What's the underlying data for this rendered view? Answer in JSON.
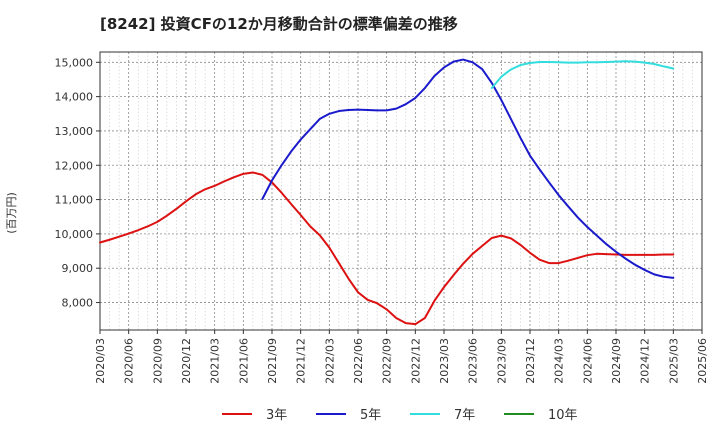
{
  "title": "[8242]  投資CFの12か月移動合計の標準偏差の推移",
  "chart_data": {
    "type": "line",
    "title": "[8242]  投資CFの12か月移動合計の標準偏差の推移",
    "xlabel": "",
    "ylabel": "(百万円)",
    "ylim": [
      7200,
      15300
    ],
    "yticks": [
      8000,
      9000,
      10000,
      11000,
      12000,
      13000,
      14000,
      15000
    ],
    "ytick_labels": [
      "8,000",
      "9,000",
      "10,000",
      "11,000",
      "12,000",
      "13,000",
      "14,000",
      "15,000"
    ],
    "xlim": [
      "2020-03",
      "2025-06"
    ],
    "xticks": [
      "2020/03",
      "2020/06",
      "2020/09",
      "2020/12",
      "2021/03",
      "2021/06",
      "2021/09",
      "2021/12",
      "2022/03",
      "2022/06",
      "2022/09",
      "2022/12",
      "2023/03",
      "2023/06",
      "2023/09",
      "2023/12",
      "2024/03",
      "2024/06",
      "2024/09",
      "2024/12",
      "2025/03",
      "2025/06"
    ],
    "grid": true,
    "legend_position": "bottom",
    "series": [
      {
        "name": "3年",
        "color": "#dd1111",
        "x": [
          "2020-03",
          "2020-04",
          "2020-05",
          "2020-06",
          "2020-07",
          "2020-08",
          "2020-09",
          "2020-10",
          "2020-11",
          "2020-12",
          "2021-01",
          "2021-02",
          "2021-03",
          "2021-04",
          "2021-05",
          "2021-06",
          "2021-07",
          "2021-08",
          "2021-09",
          "2021-10",
          "2021-11",
          "2021-12",
          "2022-01",
          "2022-02",
          "2022-03",
          "2022-04",
          "2022-05",
          "2022-06",
          "2022-07",
          "2022-08",
          "2022-09",
          "2022-10",
          "2022-11",
          "2022-12",
          "2023-01",
          "2023-02",
          "2023-03",
          "2023-04",
          "2023-05",
          "2023-06",
          "2023-07",
          "2023-08",
          "2023-09",
          "2023-10",
          "2023-11",
          "2023-12",
          "2024-01",
          "2024-02",
          "2024-03",
          "2024-04",
          "2024-05",
          "2024-06",
          "2024-07",
          "2024-08",
          "2024-09",
          "2024-10",
          "2024-11",
          "2024-12",
          "2025-01",
          "2025-02",
          "2025-03"
        ],
        "values": [
          9750,
          9830,
          9920,
          10010,
          10110,
          10220,
          10350,
          10530,
          10730,
          10950,
          11150,
          11300,
          11400,
          11530,
          11650,
          11750,
          11790,
          11720,
          11500,
          11200,
          10870,
          10550,
          10220,
          9960,
          9600,
          9150,
          8700,
          8300,
          8080,
          7980,
          7800,
          7550,
          7400,
          7370,
          7550,
          8050,
          8450,
          8800,
          9130,
          9420,
          9650,
          9880,
          9950,
          9870,
          9680,
          9450,
          9250,
          9150,
          9150,
          9220,
          9300,
          9380,
          9420,
          9410,
          9400,
          9390,
          9390,
          9390,
          9390,
          9400,
          9400
        ]
      },
      {
        "name": "5年",
        "color": "#1a1acc",
        "x": [
          "2021-08",
          "2021-09",
          "2021-10",
          "2021-11",
          "2021-12",
          "2022-01",
          "2022-02",
          "2022-03",
          "2022-04",
          "2022-05",
          "2022-06",
          "2022-07",
          "2022-08",
          "2022-09",
          "2022-10",
          "2022-11",
          "2022-12",
          "2023-01",
          "2023-02",
          "2023-03",
          "2023-04",
          "2023-05",
          "2023-06",
          "2023-07",
          "2023-08",
          "2023-09",
          "2023-10",
          "2023-11",
          "2023-12",
          "2024-01",
          "2024-02",
          "2024-03",
          "2024-04",
          "2024-05",
          "2024-06",
          "2024-07",
          "2024-08",
          "2024-09",
          "2024-10",
          "2024-11",
          "2024-12",
          "2025-01",
          "2025-02",
          "2025-03"
        ],
        "values": [
          11020,
          11560,
          12000,
          12400,
          12750,
          13050,
          13350,
          13500,
          13580,
          13610,
          13620,
          13610,
          13600,
          13600,
          13650,
          13780,
          13960,
          14250,
          14600,
          14850,
          15020,
          15080,
          15000,
          14800,
          14400,
          13900,
          13350,
          12800,
          12280,
          11880,
          11500,
          11130,
          10800,
          10480,
          10200,
          9950,
          9700,
          9480,
          9280,
          9100,
          8950,
          8820,
          8750,
          8720
        ]
      },
      {
        "name": "7年",
        "color": "#33dddd",
        "x": [
          "2023-08",
          "2023-09",
          "2023-10",
          "2023-11",
          "2023-12",
          "2024-01",
          "2024-02",
          "2024-03",
          "2024-04",
          "2024-05",
          "2024-06",
          "2024-07",
          "2024-08",
          "2024-09",
          "2024-10",
          "2024-11",
          "2024-12",
          "2025-01",
          "2025-02",
          "2025-03"
        ],
        "values": [
          14250,
          14580,
          14790,
          14920,
          14980,
          15010,
          15010,
          15000,
          14990,
          14990,
          15000,
          15000,
          15010,
          15020,
          15030,
          15020,
          14990,
          14950,
          14880,
          14820
        ]
      },
      {
        "name": "10年",
        "color": "#228b22",
        "x": [],
        "values": []
      }
    ]
  }
}
